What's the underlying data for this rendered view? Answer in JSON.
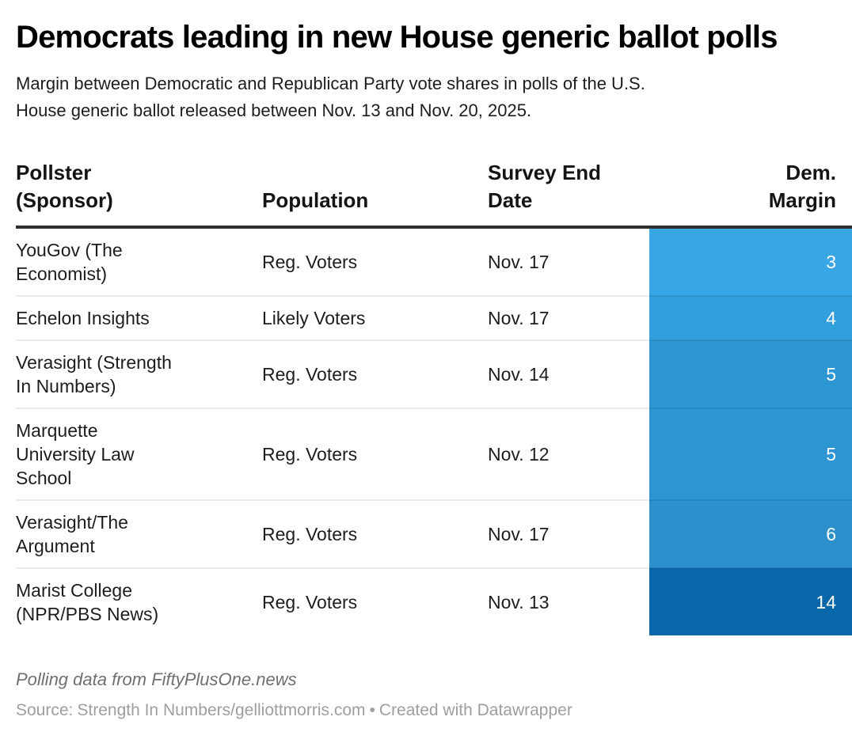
{
  "header": {
    "title": "Democrats leading in new House generic ballot polls",
    "subtitle": "Margin between Democratic and Republican Party vote shares in polls of the U.S.\nHouse generic ballot released between Nov. 13 and Nov. 20, 2025."
  },
  "table": {
    "headers": [
      "Pollster\n(Sponsor)",
      "Population",
      "Survey End\nDate",
      "Dem.\nMargin"
    ],
    "rows": [
      {
        "pollster": "YouGov (The\nEconomist)",
        "population": "Reg. Voters",
        "survey_end_date": "Nov. 17",
        "dem_margin": "3",
        "color": "#38a6e4"
      },
      {
        "pollster": "Echelon Insights",
        "population": "Likely Voters",
        "survey_end_date": "Nov. 17",
        "dem_margin": "4",
        "color": "#309fdb"
      },
      {
        "pollster": "Verasight (Strength\nIn Numbers)",
        "population": "Reg. Voters",
        "survey_end_date": "Nov. 14",
        "dem_margin": "5",
        "color": "#2d96d2"
      },
      {
        "pollster": "Marquette\nUniversity Law\nSchool",
        "population": "Reg. Voters",
        "survey_end_date": "Nov. 12",
        "dem_margin": "5",
        "color": "#2d96d2"
      },
      {
        "pollster": "Verasight/The\nArgument",
        "population": "Reg. Voters",
        "survey_end_date": "Nov. 17",
        "dem_margin": "6",
        "color": "#2b90cb"
      },
      {
        "pollster": "Marist College\n(NPR/PBS News)",
        "population": "Reg. Voters",
        "survey_end_date": "Nov. 13",
        "dem_margin": "14",
        "color": "#0767a8"
      }
    ]
  },
  "footer": {
    "note": "Polling data from FiftyPlusOne.news",
    "source_label": "Source:",
    "source_name": "Strength In Numbers/gelliottmorris.com",
    "separator": "•",
    "attribution": "Created with Datawrapper"
  },
  "colors": {
    "header_rule": "#2e2e2e",
    "divider": "rgba(0,0,0,0.08)",
    "margin_text": "#ffffff",
    "note_text": "#6f6f6f",
    "source_text": "#9e9e9e"
  },
  "chart_data": {
    "type": "table",
    "title": "Democrats leading in new House generic ballot polls",
    "subtitle": "Margin between Democratic and Republican Party vote shares in polls of the U.S. House generic ballot released between Nov. 13 and Nov. 20, 2025.",
    "columns": [
      "Pollster (Sponsor)",
      "Population",
      "Survey End Date",
      "Dem. Margin"
    ],
    "rows": [
      [
        "YouGov (The Economist)",
        "Reg. Voters",
        "Nov. 17",
        3
      ],
      [
        "Echelon Insights",
        "Likely Voters",
        "Nov. 17",
        4
      ],
      [
        "Verasight (Strength In Numbers)",
        "Reg. Voters",
        "Nov. 14",
        5
      ],
      [
        "Marquette University Law School",
        "Reg. Voters",
        "Nov. 12",
        5
      ],
      [
        "Verasight/The Argument",
        "Reg. Voters",
        "Nov. 17",
        6
      ],
      [
        "Marist College (NPR/PBS News)",
        "Reg. Voters",
        "Nov. 13",
        14
      ]
    ],
    "value_column": "Dem. Margin",
    "color_scale": {
      "light_color": "#38a6e4",
      "dark_color": "#0767a8",
      "domain": [
        3,
        14
      ]
    },
    "note": "Polling data from FiftyPlusOne.news",
    "source": "Strength In Numbers/gelliottmorris.com",
    "attribution": "Created with Datawrapper"
  }
}
